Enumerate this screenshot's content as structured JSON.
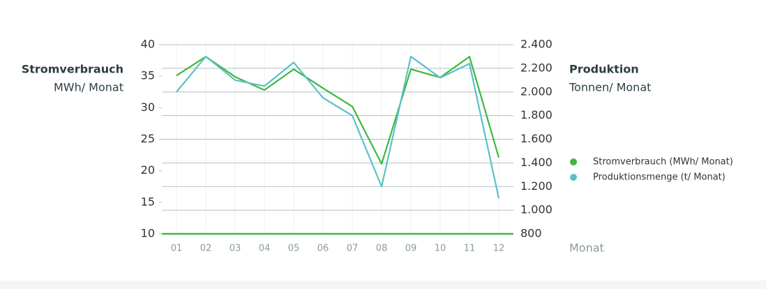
{
  "chart_data": {
    "type": "line",
    "y_title": "Stromverbrauch",
    "y_unit": "MWh/ Monat",
    "y2_title": "Produktion",
    "y2_unit": "Tonnen/ Monat",
    "x_label": "Monat",
    "categories": [
      "01",
      "02",
      "03",
      "04",
      "05",
      "06",
      "07",
      "08",
      "09",
      "10",
      "11",
      "12"
    ],
    "series": [
      {
        "name": "Stromverbrauch (MWh/ Monat)",
        "color": "#3db83d",
        "values": [
          35.1,
          38.1,
          34.9,
          32.8,
          36.1,
          33.1,
          30.2,
          21.1,
          36.1,
          34.8,
          38.1,
          22.1
        ]
      },
      {
        "name": "Produktionsmenge (t/ Monat)",
        "color": "#5bc0c8",
        "axis": "y2",
        "values": [
          2000,
          2300,
          2100,
          2050,
          2250,
          1950,
          1800,
          1200,
          2300,
          2120,
          2240,
          1100
        ]
      }
    ],
    "ylim": [
      10,
      40
    ],
    "yticks": [
      10,
      15,
      20,
      25,
      30,
      35,
      40
    ],
    "y2lim": [
      800,
      2400
    ],
    "y2ticks": [
      800,
      {
        "value": 1000,
        "label": "1.000"
      },
      {
        "value": 1200,
        "label": "1.200"
      },
      {
        "value": 1400,
        "label": "1.400"
      },
      {
        "value": 1600,
        "label": "1.600"
      },
      {
        "value": 1800,
        "label": "1.800"
      },
      {
        "value": 2000,
        "label": "2.000"
      },
      {
        "value": 2200,
        "label": "2.200"
      },
      {
        "value": 2400,
        "label": "2.400"
      }
    ],
    "grid": true
  }
}
